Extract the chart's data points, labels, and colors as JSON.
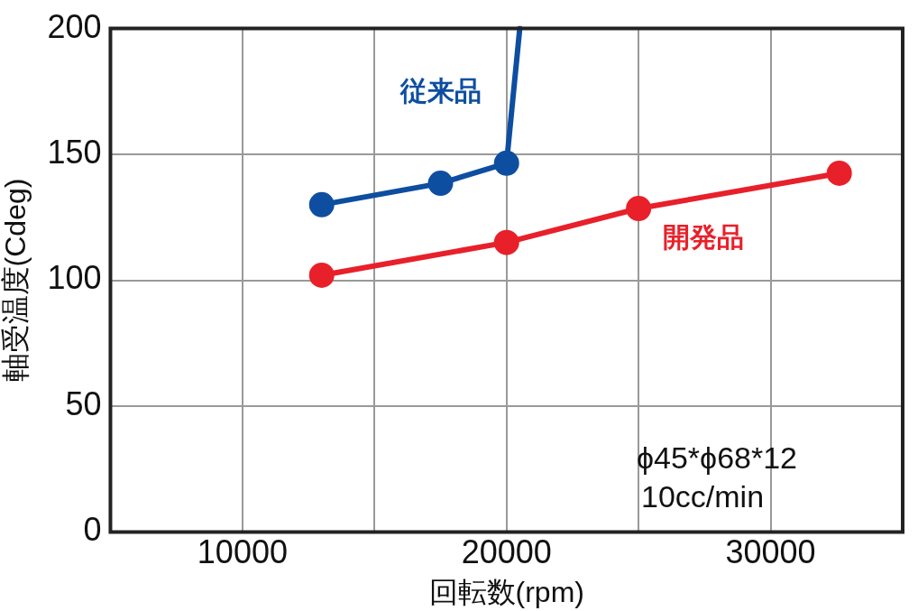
{
  "chart_data": {
    "type": "line",
    "xlabel": "回転数(rpm)",
    "ylabel": "軸受温度(Cdeg)",
    "xlim": [
      5000,
      35000
    ],
    "xticks": [
      {
        "value": 10000,
        "label": "10000"
      },
      {
        "value": 15000,
        "label": null
      },
      {
        "value": 20000,
        "label": "20000"
      },
      {
        "value": 25000,
        "label": null
      },
      {
        "value": 30000,
        "label": "30000"
      }
    ],
    "ylim": [
      0,
      200
    ],
    "yticks": [
      0,
      50,
      100,
      150,
      200
    ],
    "grid": true,
    "legend": false,
    "marker": "circle",
    "line_style": "solid",
    "series": [
      {
        "name": "従来品",
        "color": "#0d4ea0",
        "x": [
          13000,
          17500,
          20000,
          20500
        ],
        "values": [
          130,
          138.5,
          146.5,
          200
        ]
      },
      {
        "name": "開発品",
        "color": "#e8202a",
        "x": [
          13000,
          20000,
          25000,
          32600
        ],
        "values": [
          102,
          115,
          128.5,
          142.5
        ]
      }
    ],
    "annotations": [
      "ϕ45*ϕ68*12",
      "10cc/min"
    ]
  }
}
